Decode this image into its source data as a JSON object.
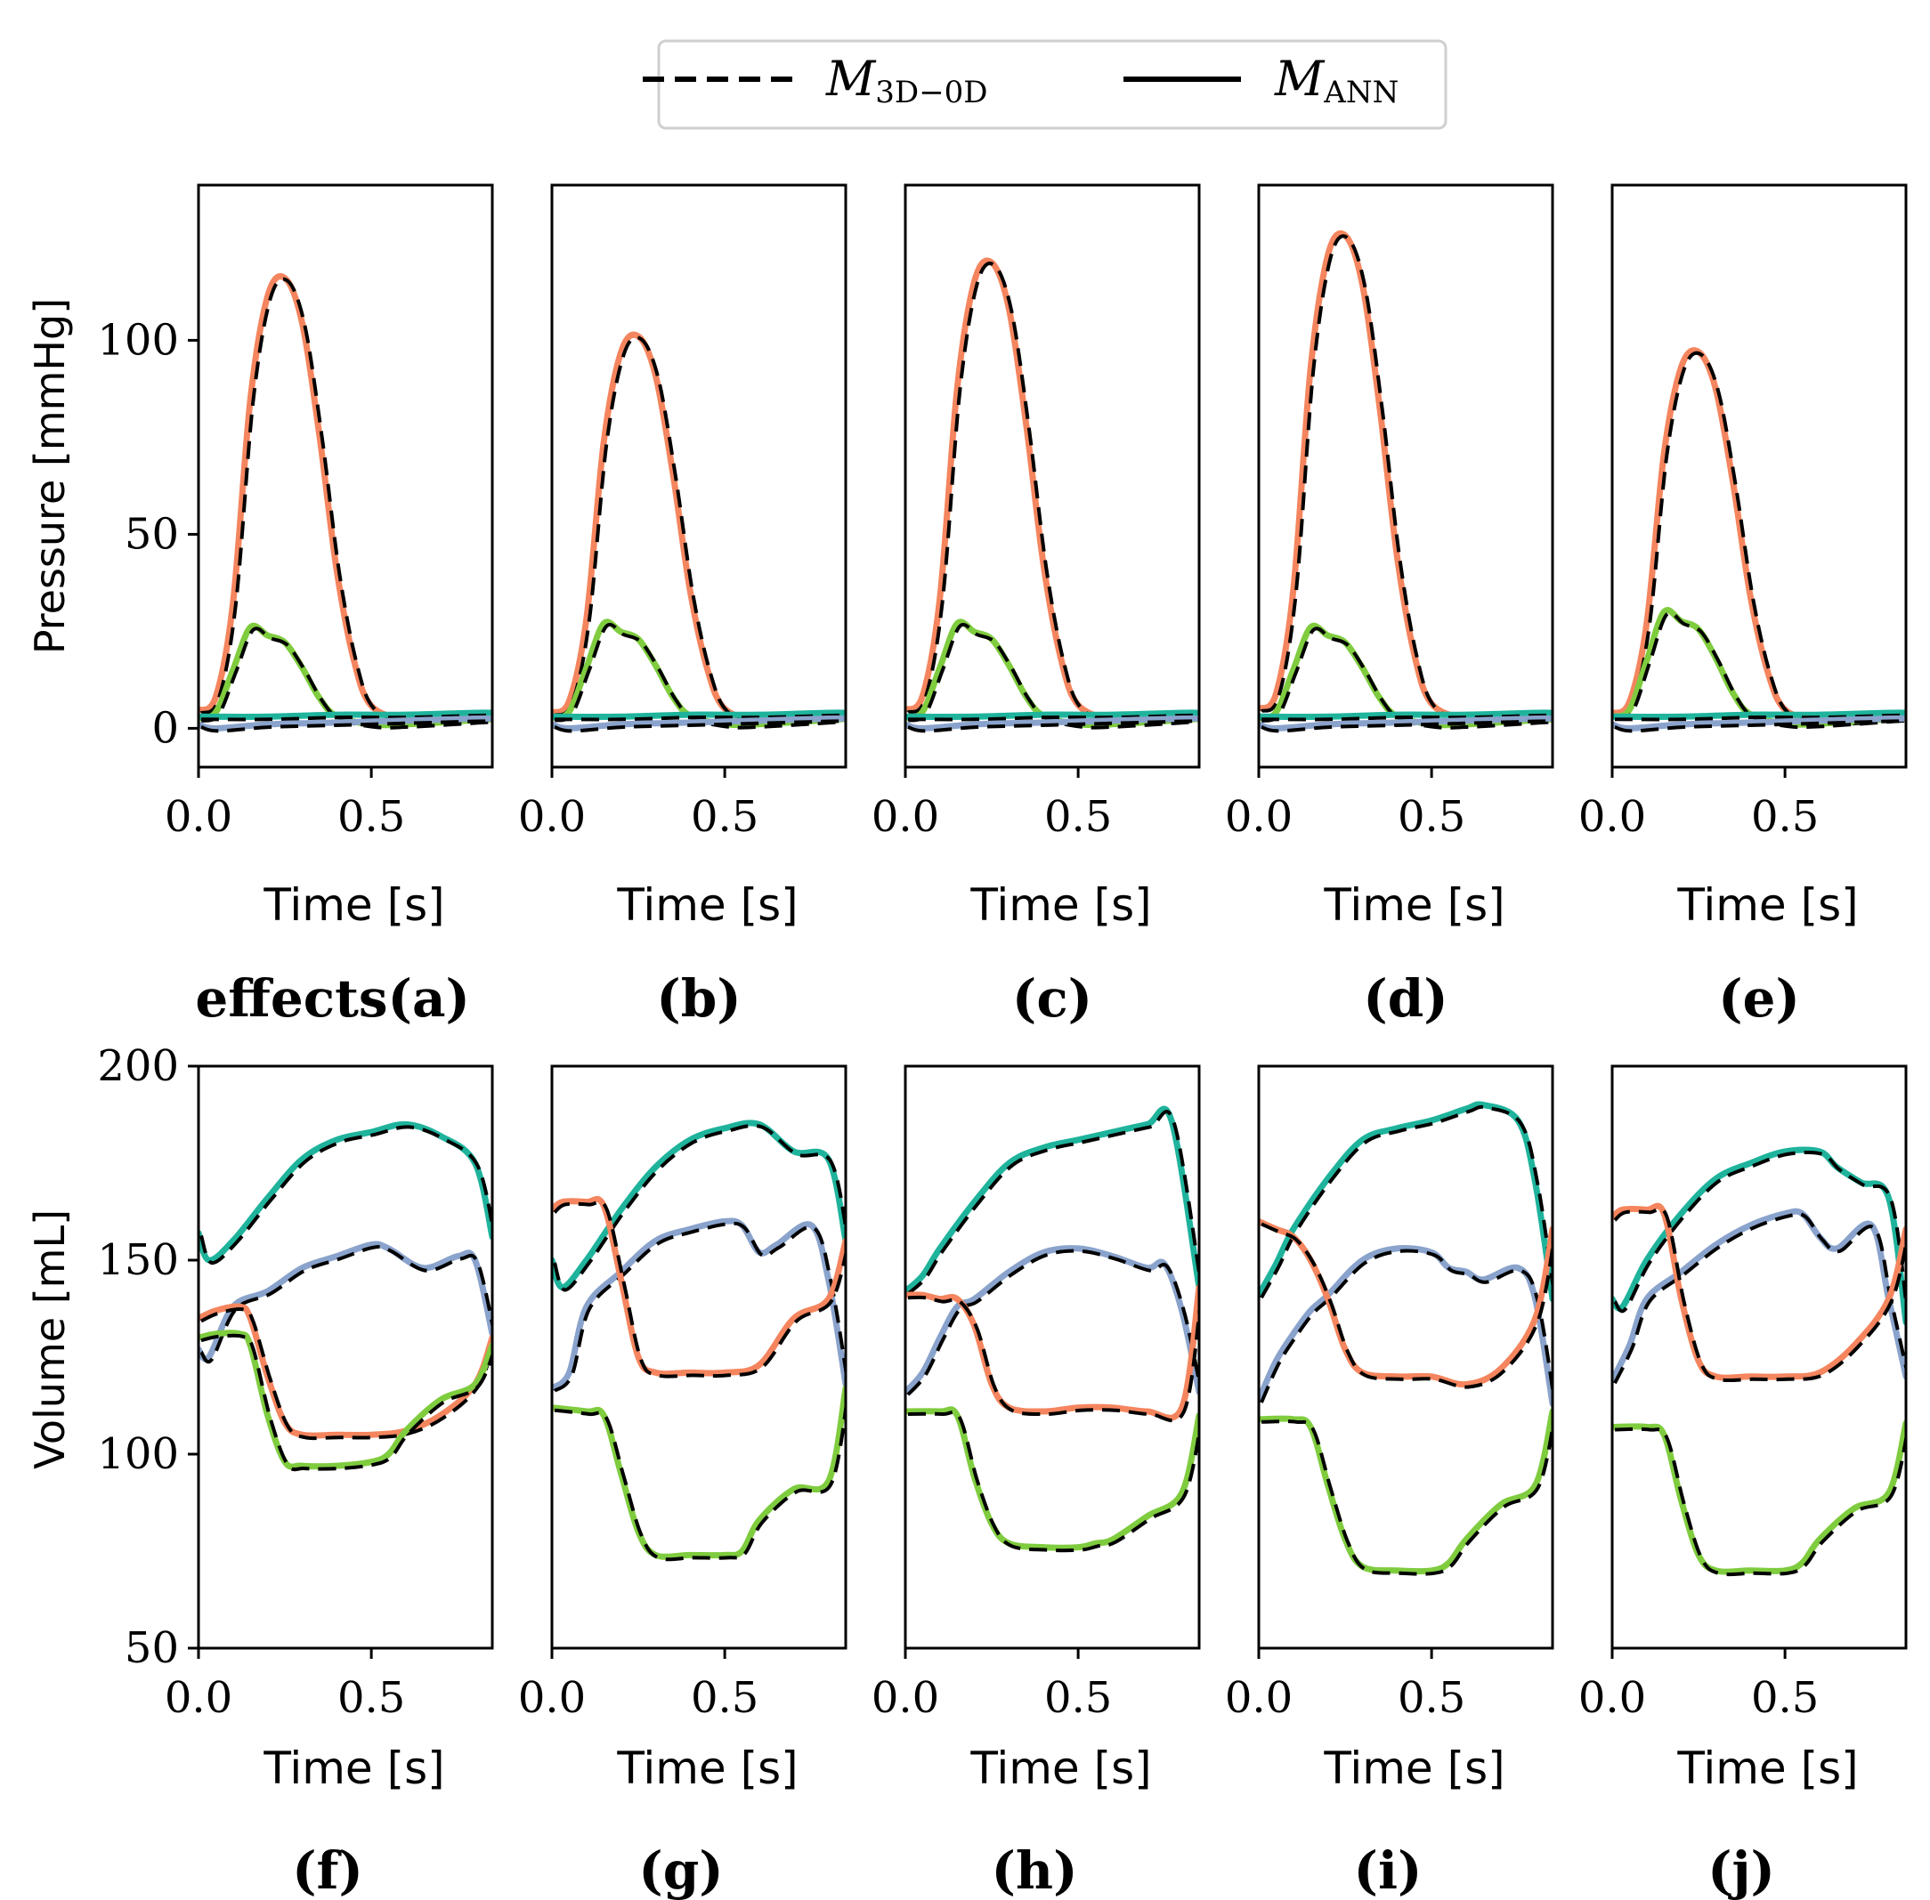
{
  "figure": {
    "legend": {
      "dashed_label": "M",
      "dashed_sub": "3D−0D",
      "solid_label": "M",
      "solid_sub": "ANN"
    },
    "panel_labels": [
      "effects(a)",
      "(b)",
      "(c)",
      "(d)",
      "(e)",
      "(f)",
      "(g)",
      "(h)",
      "(i)",
      "(j)"
    ],
    "colors": {
      "orange": "#f4855e",
      "green": "#7fcc3f",
      "teal": "#1fb39c",
      "blue": "#8aa3cc",
      "reference": "#000000"
    }
  },
  "chart_data": [
    {
      "type": "line",
      "row": "pressure",
      "xlabel": "Time [s]",
      "ylabel": "Pressure [mmHg]",
      "xlim": [
        0,
        0.85
      ],
      "ylim": [
        -10,
        140
      ],
      "xticks": [
        "0.0",
        "0.5"
      ],
      "yticks": [
        "0",
        "50",
        "100"
      ],
      "panels": [
        {
          "label": "(a)",
          "peak_orange": 116,
          "peak_green": 26,
          "peak_time": 0.25
        },
        {
          "label": "(b)",
          "peak_orange": 101,
          "peak_green": 27,
          "peak_time": 0.24
        },
        {
          "label": "(c)",
          "peak_orange": 120,
          "peak_green": 27,
          "peak_time": 0.26
        },
        {
          "label": "(d)",
          "peak_orange": 127,
          "peak_green": 26,
          "peak_time": 0.25
        },
        {
          "label": "(e)",
          "peak_orange": 97,
          "peak_green": 30,
          "peak_time": 0.23
        }
      ],
      "series": [
        {
          "name": "orange",
          "x": [
            0,
            0.05,
            0.1,
            0.15,
            0.2,
            0.25,
            0.3,
            0.35,
            0.4,
            0.45,
            0.5,
            0.6,
            0.7,
            0.8,
            0.85
          ],
          "shape": [
            0.04,
            0.07,
            0.28,
            0.73,
            0.96,
            1.0,
            0.9,
            0.65,
            0.35,
            0.15,
            0.05,
            0.02,
            0.02,
            0.03,
            0.03
          ]
        },
        {
          "name": "green",
          "x": [
            0,
            0.05,
            0.1,
            0.15,
            0.2,
            0.25,
            0.3,
            0.35,
            0.4,
            0.5,
            0.6,
            0.8,
            0.85
          ],
          "shape": [
            0.1,
            0.16,
            0.58,
            1.0,
            0.92,
            0.85,
            0.6,
            0.3,
            0.12,
            0.04,
            0.04,
            0.08,
            0.09
          ]
        },
        {
          "name": "teal",
          "x": [
            0,
            0.2,
            0.4,
            0.6,
            0.8,
            0.85
          ],
          "y": [
            3,
            3,
            3.5,
            3.5,
            4,
            4
          ]
        },
        {
          "name": "blue",
          "x": [
            0,
            0.05,
            0.2,
            0.4,
            0.6,
            0.8,
            0.85
          ],
          "y": [
            1,
            0,
            1,
            1.5,
            2,
            2.5,
            2.5
          ]
        }
      ]
    },
    {
      "type": "line",
      "row": "volume",
      "xlabel": "Time [s]",
      "ylabel": "Volume [mL]",
      "xlim": [
        0,
        0.85
      ],
      "ylim": [
        50,
        200
      ],
      "xticks": [
        "0.0",
        "0.5"
      ],
      "yticks": [
        "50",
        "100",
        "150",
        "200"
      ],
      "panels": [
        {
          "label": "(f)",
          "teal": {
            "x": [
              0,
              0.03,
              0.1,
              0.2,
              0.3,
              0.4,
              0.5,
              0.6,
              0.7,
              0.8,
              0.85
            ],
            "y": [
              157,
              150,
              155,
              166,
              176,
              181,
              183,
              185,
              182,
              175,
              156
            ]
          },
          "blue": {
            "x": [
              0,
              0.03,
              0.1,
              0.2,
              0.3,
              0.4,
              0.5,
              0.55,
              0.65,
              0.75,
              0.8,
              0.85
            ],
            "y": [
              127,
              125,
              138,
              142,
              148,
              151,
              154,
              153,
              148,
              151,
              150,
              131
            ]
          },
          "orange": {
            "x": [
              0,
              0.05,
              0.12,
              0.15,
              0.2,
              0.25,
              0.3,
              0.4,
              0.5,
              0.6,
              0.7,
              0.8,
              0.85
            ],
            "y": [
              135,
              137,
              138,
              135,
              120,
              108,
              105,
              105,
              105,
              106,
              110,
              118,
              130
            ]
          },
          "green": {
            "x": [
              0,
              0.05,
              0.12,
              0.15,
              0.2,
              0.25,
              0.3,
              0.4,
              0.5,
              0.55,
              0.6,
              0.7,
              0.8,
              0.85
            ],
            "y": [
              130,
              131,
              131,
              128,
              110,
              98,
              97,
              97,
              98,
              100,
              106,
              114,
              118,
              128
            ]
          }
        },
        {
          "label": "(g)",
          "teal": {
            "x": [
              0,
              0.03,
              0.1,
              0.2,
              0.3,
              0.4,
              0.5,
              0.6,
              0.7,
              0.8,
              0.85
            ],
            "y": [
              150,
              143,
              150,
              163,
              174,
              181,
              184,
              185,
              178,
              176,
              155
            ]
          },
          "blue": {
            "x": [
              0,
              0.05,
              0.1,
              0.2,
              0.3,
              0.4,
              0.5,
              0.55,
              0.6,
              0.65,
              0.75,
              0.8,
              0.85
            ],
            "y": [
              117,
              121,
              138,
              147,
              155,
              158,
              160,
              159,
              152,
              154,
              159,
              145,
              118
            ]
          },
          "orange": {
            "x": [
              0,
              0.03,
              0.1,
              0.15,
              0.2,
              0.25,
              0.3,
              0.4,
              0.5,
              0.6,
              0.7,
              0.8,
              0.85
            ],
            "y": [
              163,
              165,
              165,
              164,
              145,
              125,
              121,
              121,
              121,
              123,
              135,
              140,
              155
            ]
          },
          "green": {
            "x": [
              0,
              0.1,
              0.15,
              0.2,
              0.25,
              0.3,
              0.4,
              0.5,
              0.55,
              0.6,
              0.7,
              0.8,
              0.85
            ],
            "y": [
              112,
              111,
              110,
              95,
              80,
              74,
              74,
              74,
              75,
              83,
              91,
              93,
              117
            ]
          }
        },
        {
          "label": "(h)",
          "teal": {
            "x": [
              0,
              0.05,
              0.1,
              0.2,
              0.3,
              0.4,
              0.5,
              0.6,
              0.7,
              0.77,
              0.85
            ],
            "y": [
              142,
              146,
              153,
              165,
              175,
              179,
              181,
              183,
              185,
              186,
              143
            ]
          },
          "blue": {
            "x": [
              0,
              0.05,
              0.1,
              0.15,
              0.2,
              0.3,
              0.4,
              0.5,
              0.6,
              0.7,
              0.75,
              0.8,
              0.85
            ],
            "y": [
              116,
              121,
              130,
              138,
              140,
              147,
              152,
              153,
              151,
              148,
              149,
              137,
              116
            ]
          },
          "orange": {
            "x": [
              0,
              0.05,
              0.1,
              0.15,
              0.2,
              0.25,
              0.3,
              0.4,
              0.5,
              0.6,
              0.7,
              0.8,
              0.85
            ],
            "y": [
              141,
              141,
              140,
              140,
              133,
              118,
              112,
              111,
              112,
              112,
              111,
              112,
              143
            ]
          },
          "green": {
            "x": [
              0,
              0.1,
              0.15,
              0.2,
              0.25,
              0.3,
              0.4,
              0.5,
              0.55,
              0.6,
              0.7,
              0.8,
              0.85
            ],
            "y": [
              111,
              111,
              110,
              94,
              82,
              77,
              76,
              76,
              77,
              78,
              84,
              90,
              110
            ]
          }
        },
        {
          "label": "(i)",
          "teal": {
            "x": [
              0,
              0.05,
              0.1,
              0.2,
              0.3,
              0.4,
              0.5,
              0.6,
              0.65,
              0.75,
              0.8,
              0.85
            ],
            "y": [
              141,
              149,
              158,
              171,
              181,
              184,
              186,
              189,
              190,
              186,
              170,
              140
            ]
          },
          "blue": {
            "x": [
              0,
              0.05,
              0.1,
              0.15,
              0.2,
              0.3,
              0.4,
              0.5,
              0.55,
              0.6,
              0.65,
              0.75,
              0.8,
              0.85
            ],
            "y": [
              114,
              124,
              131,
              137,
              141,
              150,
              153,
              152,
              148,
              147,
              145,
              148,
              140,
              113
            ]
          },
          "orange": {
            "x": [
              0,
              0.05,
              0.1,
              0.15,
              0.2,
              0.25,
              0.3,
              0.4,
              0.5,
              0.6,
              0.7,
              0.8,
              0.85
            ],
            "y": [
              160,
              158,
              156,
              150,
              140,
              127,
              121,
              120,
              120,
              118,
              122,
              135,
              158
            ]
          },
          "green": {
            "x": [
              0,
              0.1,
              0.15,
              0.2,
              0.25,
              0.3,
              0.4,
              0.5,
              0.55,
              0.6,
              0.7,
              0.8,
              0.85
            ],
            "y": [
              109,
              109,
              107,
              92,
              78,
              71,
              70,
              70,
              72,
              78,
              87,
              92,
              111
            ]
          }
        },
        {
          "label": "(j)",
          "teal": {
            "x": [
              0,
              0.03,
              0.1,
              0.2,
              0.3,
              0.4,
              0.5,
              0.6,
              0.65,
              0.72,
              0.8,
              0.85
            ],
            "y": [
              140,
              138,
              150,
              162,
              171,
              175,
              178,
              178,
              174,
              170,
              166,
              134
            ]
          },
          "blue": {
            "x": [
              0,
              0.05,
              0.1,
              0.2,
              0.3,
              0.4,
              0.5,
              0.55,
              0.6,
              0.65,
              0.75,
              0.8,
              0.85
            ],
            "y": [
              119,
              128,
              140,
              147,
              154,
              159,
              162,
              162,
              156,
              153,
              159,
              140,
              120
            ]
          },
          "orange": {
            "x": [
              0,
              0.03,
              0.1,
              0.15,
              0.2,
              0.25,
              0.3,
              0.4,
              0.5,
              0.6,
              0.7,
              0.8,
              0.85
            ],
            "y": [
              161,
              163,
              163,
              162,
              140,
              124,
              120,
              120,
              120,
              121,
              128,
              140,
              158
            ]
          },
          "green": {
            "x": [
              0,
              0.1,
              0.15,
              0.2,
              0.25,
              0.3,
              0.4,
              0.5,
              0.55,
              0.6,
              0.7,
              0.8,
              0.85
            ],
            "y": [
              107,
              107,
              105,
              88,
              74,
              70,
              70,
              70,
              72,
              78,
              86,
              90,
              108
            ]
          }
        }
      ]
    }
  ]
}
